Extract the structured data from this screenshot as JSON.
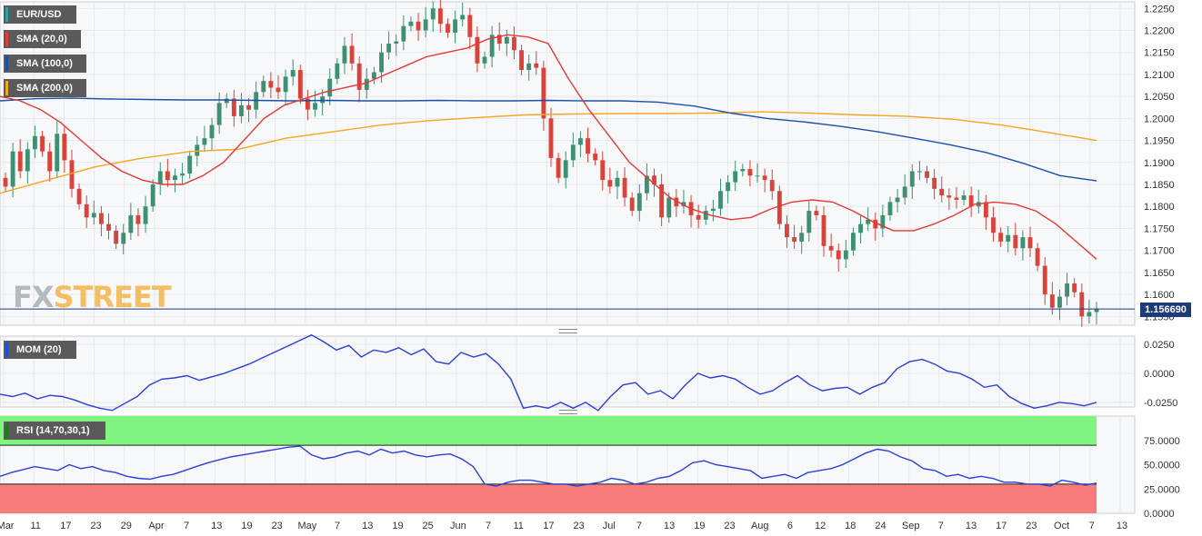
{
  "instrument": "EUR/USD",
  "watermark": {
    "part1": "FX",
    "part2": "STREET"
  },
  "legends": {
    "main": [
      {
        "label": "EUR/USD",
        "color": "#26a69a"
      },
      {
        "label": "SMA (20,0)",
        "color": "#e53935"
      },
      {
        "label": "SMA (100,0)",
        "color": "#1e4fa8"
      },
      {
        "label": "SMA (200,0)",
        "color": "#f5a623"
      }
    ],
    "mom": {
      "label": "MOM (20)",
      "color": "#1e4fd8"
    },
    "rsi": {
      "label": "RSI (14,70,30,1)",
      "color": "#1a7f1a"
    }
  },
  "current_price": "1.156690",
  "colors": {
    "up": "#3f8f73",
    "down": "#d9433a",
    "sma20": "#e53935",
    "sma100": "#1e4fa8",
    "sma200": "#f5a623",
    "mom": "#2a3fd6",
    "rsi": "#2a3fd6",
    "rsi_upper": "#80f580",
    "rsi_lower": "#f87c7c"
  },
  "chart_data": [
    {
      "type": "candlestick",
      "title": "EUR/USD",
      "ylim": [
        1.153,
        1.2265
      ],
      "y_ticks": [
        "1.2250",
        "1.2200",
        "1.2150",
        "1.2100",
        "1.2050",
        "1.2000",
        "1.1950",
        "1.1900",
        "1.1850",
        "1.1800",
        "1.1750",
        "1.1700",
        "1.1650",
        "1.1600",
        "1.1550"
      ],
      "x_ticks": [
        "Mar",
        "11",
        "17",
        "23",
        "29",
        "Apr",
        "7",
        "13",
        "19",
        "23",
        "May",
        "7",
        "13",
        "19",
        "25",
        "Jun",
        "7",
        "11",
        "17",
        "23",
        "Jul",
        "7",
        "13",
        "19",
        "23",
        "Aug",
        "6",
        "12",
        "18",
        "24",
        "Sep",
        "7",
        "13",
        "17",
        "23",
        "Oct",
        "7",
        "13"
      ],
      "closes": [
        1.1845,
        1.1925,
        1.188,
        1.193,
        1.196,
        1.1925,
        1.188,
        1.1965,
        1.1905,
        1.184,
        1.1805,
        1.1775,
        1.1785,
        1.176,
        1.1745,
        1.1715,
        1.174,
        1.178,
        1.176,
        1.18,
        1.185,
        1.188,
        1.186,
        1.187,
        1.1875,
        1.1915,
        1.194,
        1.1955,
        1.1985,
        1.2035,
        1.2045,
        1.2005,
        1.203,
        1.202,
        1.206,
        1.2085,
        1.207,
        1.206,
        1.2095,
        1.211,
        1.2045,
        1.202,
        1.2035,
        1.205,
        1.209,
        1.2125,
        1.2165,
        1.2125,
        1.2065,
        1.209,
        1.2105,
        1.215,
        1.217,
        1.2175,
        1.221,
        1.222,
        1.22,
        1.2225,
        1.225,
        1.2215,
        1.2195,
        1.2225,
        1.2235,
        1.2185,
        1.2125,
        1.214,
        1.219,
        1.217,
        1.2185,
        1.2155,
        1.211,
        1.2125,
        1.2115,
        1.2,
        1.191,
        1.1865,
        1.1905,
        1.194,
        1.1955,
        1.192,
        1.1905,
        1.186,
        1.1845,
        1.1865,
        1.182,
        1.179,
        1.183,
        1.187,
        1.185,
        1.1775,
        1.182,
        1.18,
        1.181,
        1.178,
        1.177,
        1.179,
        1.1795,
        1.1835,
        1.1855,
        1.188,
        1.1885,
        1.187,
        1.187,
        1.186,
        1.1835,
        1.176,
        1.173,
        1.172,
        1.174,
        1.179,
        1.178,
        1.171,
        1.17,
        1.168,
        1.17,
        1.174,
        1.176,
        1.177,
        1.175,
        1.178,
        1.181,
        1.182,
        1.1845,
        1.188,
        1.188,
        1.1865,
        1.184,
        1.1825,
        1.182,
        1.1815,
        1.1825,
        1.18,
        1.181,
        1.1775,
        1.174,
        1.172,
        1.1735,
        1.1705,
        1.173,
        1.1705,
        1.1665,
        1.16,
        1.157,
        1.1595,
        1.1625,
        1.1605,
        1.155,
        1.156,
        1.1567
      ],
      "sma20": [
        1.205,
        1.204,
        1.202,
        1.199,
        1.195,
        1.191,
        1.188,
        1.186,
        1.185,
        1.185,
        1.187,
        1.19,
        1.195,
        1.2,
        1.203,
        1.2045,
        1.206,
        1.207,
        1.208,
        1.21,
        1.212,
        1.214,
        1.215,
        1.216,
        1.218,
        1.219,
        1.2185,
        1.217,
        1.209,
        1.202,
        1.196,
        1.19,
        1.186,
        1.182,
        1.1795,
        1.178,
        1.177,
        1.1775,
        1.1795,
        1.181,
        1.1815,
        1.181,
        1.179,
        1.1765,
        1.1745,
        1.1745,
        1.176,
        1.178,
        1.1805,
        1.181,
        1.1805,
        1.179,
        1.176,
        1.172,
        1.168
      ],
      "sma100": [
        1.204,
        1.2045,
        1.2046,
        1.2044,
        1.2043,
        1.2042,
        1.2042,
        1.2041,
        1.204,
        1.2041,
        1.204,
        1.204,
        1.2041,
        1.204,
        1.204,
        1.2041,
        1.204,
        1.204,
        1.2037,
        1.2028,
        1.2012,
        1.2,
        1.1992,
        1.1982,
        1.197,
        1.1955,
        1.194,
        1.1922,
        1.1898,
        1.187,
        1.1858
      ],
      "sma200": [
        1.183,
        1.186,
        1.189,
        1.191,
        1.1925,
        1.193,
        1.1955,
        1.197,
        1.1985,
        1.1995,
        1.2002,
        1.2008,
        1.201,
        1.2011,
        1.2011,
        1.2012,
        1.2015,
        1.2012,
        1.2008,
        1.2005,
        1.1998,
        1.1985,
        1.1968,
        1.195
      ]
    },
    {
      "type": "line",
      "title": "MOM (20)",
      "ylim": [
        -0.029,
        0.032
      ],
      "y_ticks": [
        "0.0250",
        "0.0000",
        "-0.0250"
      ],
      "values": [
        -0.018,
        -0.02,
        -0.017,
        -0.022,
        -0.019,
        -0.02,
        -0.023,
        -0.027,
        -0.03,
        -0.032,
        -0.026,
        -0.02,
        -0.01,
        -0.005,
        -0.004,
        -0.002,
        -0.006,
        -0.003,
        0.0,
        0.004,
        0.008,
        0.013,
        0.018,
        0.023,
        0.028,
        0.033,
        0.027,
        0.02,
        0.024,
        0.014,
        0.02,
        0.018,
        0.022,
        0.016,
        0.021,
        0.01,
        0.008,
        0.018,
        0.014,
        0.017,
        0.008,
        -0.005,
        -0.03,
        -0.028,
        -0.03,
        -0.025,
        -0.03,
        -0.025,
        -0.032,
        -0.02,
        -0.01,
        -0.008,
        -0.018,
        -0.015,
        -0.022,
        -0.01,
        0.0,
        -0.004,
        -0.002,
        -0.005,
        -0.012,
        -0.018,
        -0.015,
        -0.008,
        -0.002,
        -0.01,
        -0.015,
        -0.013,
        -0.012,
        -0.018,
        -0.012,
        -0.008,
        0.004,
        0.01,
        0.012,
        0.008,
        0.002,
        0.0,
        -0.005,
        -0.012,
        -0.01,
        -0.02,
        -0.026,
        -0.03,
        -0.028,
        -0.025,
        -0.026,
        -0.028,
        -0.025
      ]
    },
    {
      "type": "line",
      "title": "RSI (14,70,30,1)",
      "ylim": [
        0,
        100
      ],
      "y_ticks": [
        "75.0000",
        "50.0000",
        "25.0000",
        "0.0000"
      ],
      "upper_level": 70,
      "lower_level": 30,
      "values": [
        38,
        42,
        45,
        48,
        46,
        44,
        50,
        46,
        48,
        44,
        42,
        38,
        36,
        35,
        38,
        40,
        44,
        48,
        52,
        55,
        58,
        60,
        62,
        64,
        66,
        68,
        69,
        60,
        56,
        58,
        62,
        64,
        60,
        66,
        62,
        64,
        60,
        58,
        60,
        61,
        56,
        48,
        30,
        28,
        32,
        34,
        34,
        32,
        30,
        30,
        28,
        30,
        32,
        36,
        34,
        30,
        32,
        36,
        38,
        44,
        52,
        54,
        50,
        48,
        46,
        44,
        36,
        38,
        40,
        36,
        42,
        44,
        46,
        50,
        56,
        62,
        66,
        64,
        58,
        54,
        46,
        44,
        38,
        40,
        36,
        38,
        36,
        32,
        32,
        30,
        30,
        28,
        34,
        32,
        29,
        31
      ]
    }
  ]
}
